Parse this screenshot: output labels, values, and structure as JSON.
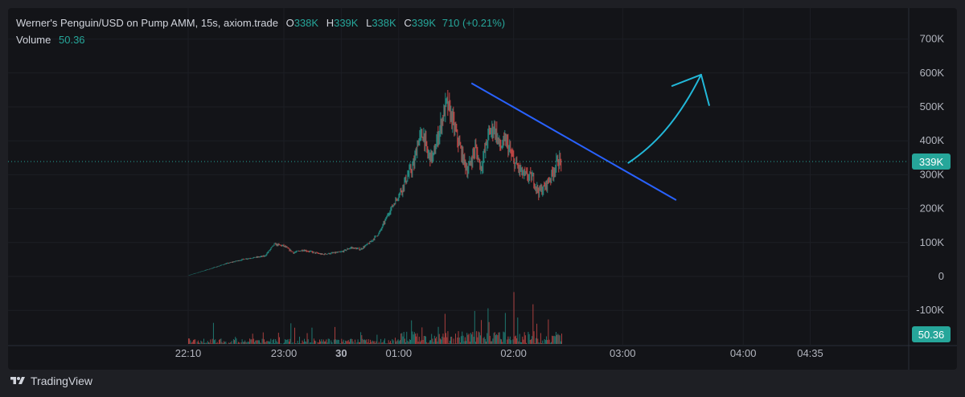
{
  "legend": {
    "symbol": "Werner's Penguin/USD on Pump AMM, 15s, axiom.trade",
    "open_label": "O",
    "open": "338K",
    "high_label": "H",
    "high": "339K",
    "low_label": "L",
    "low": "338K",
    "close_label": "C",
    "close": "339K",
    "change": "710 (+0.21%)",
    "volume_label": "Volume",
    "volume": "50.36"
  },
  "footer": {
    "brand": "TradingView"
  },
  "colors": {
    "up": "#26a69a",
    "down": "#ef5350",
    "trendline": "#2962ff",
    "arrow": "#22b8d9",
    "background": "#131418"
  },
  "chart_data": {
    "type": "candlestick",
    "title": "Werner's Penguin/USD on Pump AMM, 15s, axiom.trade",
    "y_ticks": [
      "700K",
      "600K",
      "500K",
      "400K",
      "300K",
      "200K",
      "100K",
      "0",
      "-100K"
    ],
    "y_tick_values": [
      700000,
      600000,
      500000,
      400000,
      300000,
      200000,
      100000,
      0,
      -100000
    ],
    "x_ticks": [
      "22:10",
      "23:00",
      "30",
      "01:00",
      "02:00",
      "03:00",
      "04:00",
      "04:35"
    ],
    "x_tick_minutes": [
      0,
      50,
      80,
      110,
      170,
      227,
      290,
      325
    ],
    "ylim": [
      -175000,
      730000
    ],
    "last_price_label": "339K",
    "last_price": 339000,
    "volume_label_value": "50.36",
    "price_path": [
      [
        0,
        3000
      ],
      [
        10,
        20000
      ],
      [
        20,
        38000
      ],
      [
        30,
        52000
      ],
      [
        40,
        60000
      ],
      [
        45,
        95000
      ],
      [
        50,
        90000
      ],
      [
        55,
        70000
      ],
      [
        60,
        78000
      ],
      [
        70,
        65000
      ],
      [
        80,
        72000
      ],
      [
        85,
        85000
      ],
      [
        90,
        80000
      ],
      [
        95,
        100000
      ],
      [
        100,
        130000
      ],
      [
        105,
        190000
      ],
      [
        110,
        240000
      ],
      [
        115,
        300000
      ],
      [
        118,
        330000
      ],
      [
        120,
        400000
      ],
      [
        123,
        420000
      ],
      [
        125,
        360000
      ],
      [
        128,
        350000
      ],
      [
        130,
        400000
      ],
      [
        133,
        470000
      ],
      [
        135,
        510000
      ],
      [
        137,
        480000
      ],
      [
        140,
        420000
      ],
      [
        143,
        360000
      ],
      [
        146,
        310000
      ],
      [
        150,
        380000
      ],
      [
        153,
        320000
      ],
      [
        157,
        420000
      ],
      [
        160,
        440000
      ],
      [
        163,
        380000
      ],
      [
        166,
        400000
      ],
      [
        170,
        340000
      ],
      [
        175,
        300000
      ],
      [
        180,
        290000
      ],
      [
        183,
        250000
      ],
      [
        186,
        260000
      ],
      [
        190,
        300000
      ],
      [
        193,
        340000
      ],
      [
        195,
        339000
      ]
    ],
    "trendline": {
      "start": {
        "t": 148,
        "price": 570000
      },
      "end": {
        "t": 255,
        "price": 225000
      }
    },
    "annotation_arrow": {
      "start": {
        "t": 230,
        "price": 335000
      },
      "end": {
        "t": 268,
        "price": 595000
      }
    },
    "volume_spikes": [
      [
        200,
        50
      ],
      [
        170,
        34
      ],
      [
        180,
        26
      ],
      [
        205,
        36
      ]
    ]
  }
}
